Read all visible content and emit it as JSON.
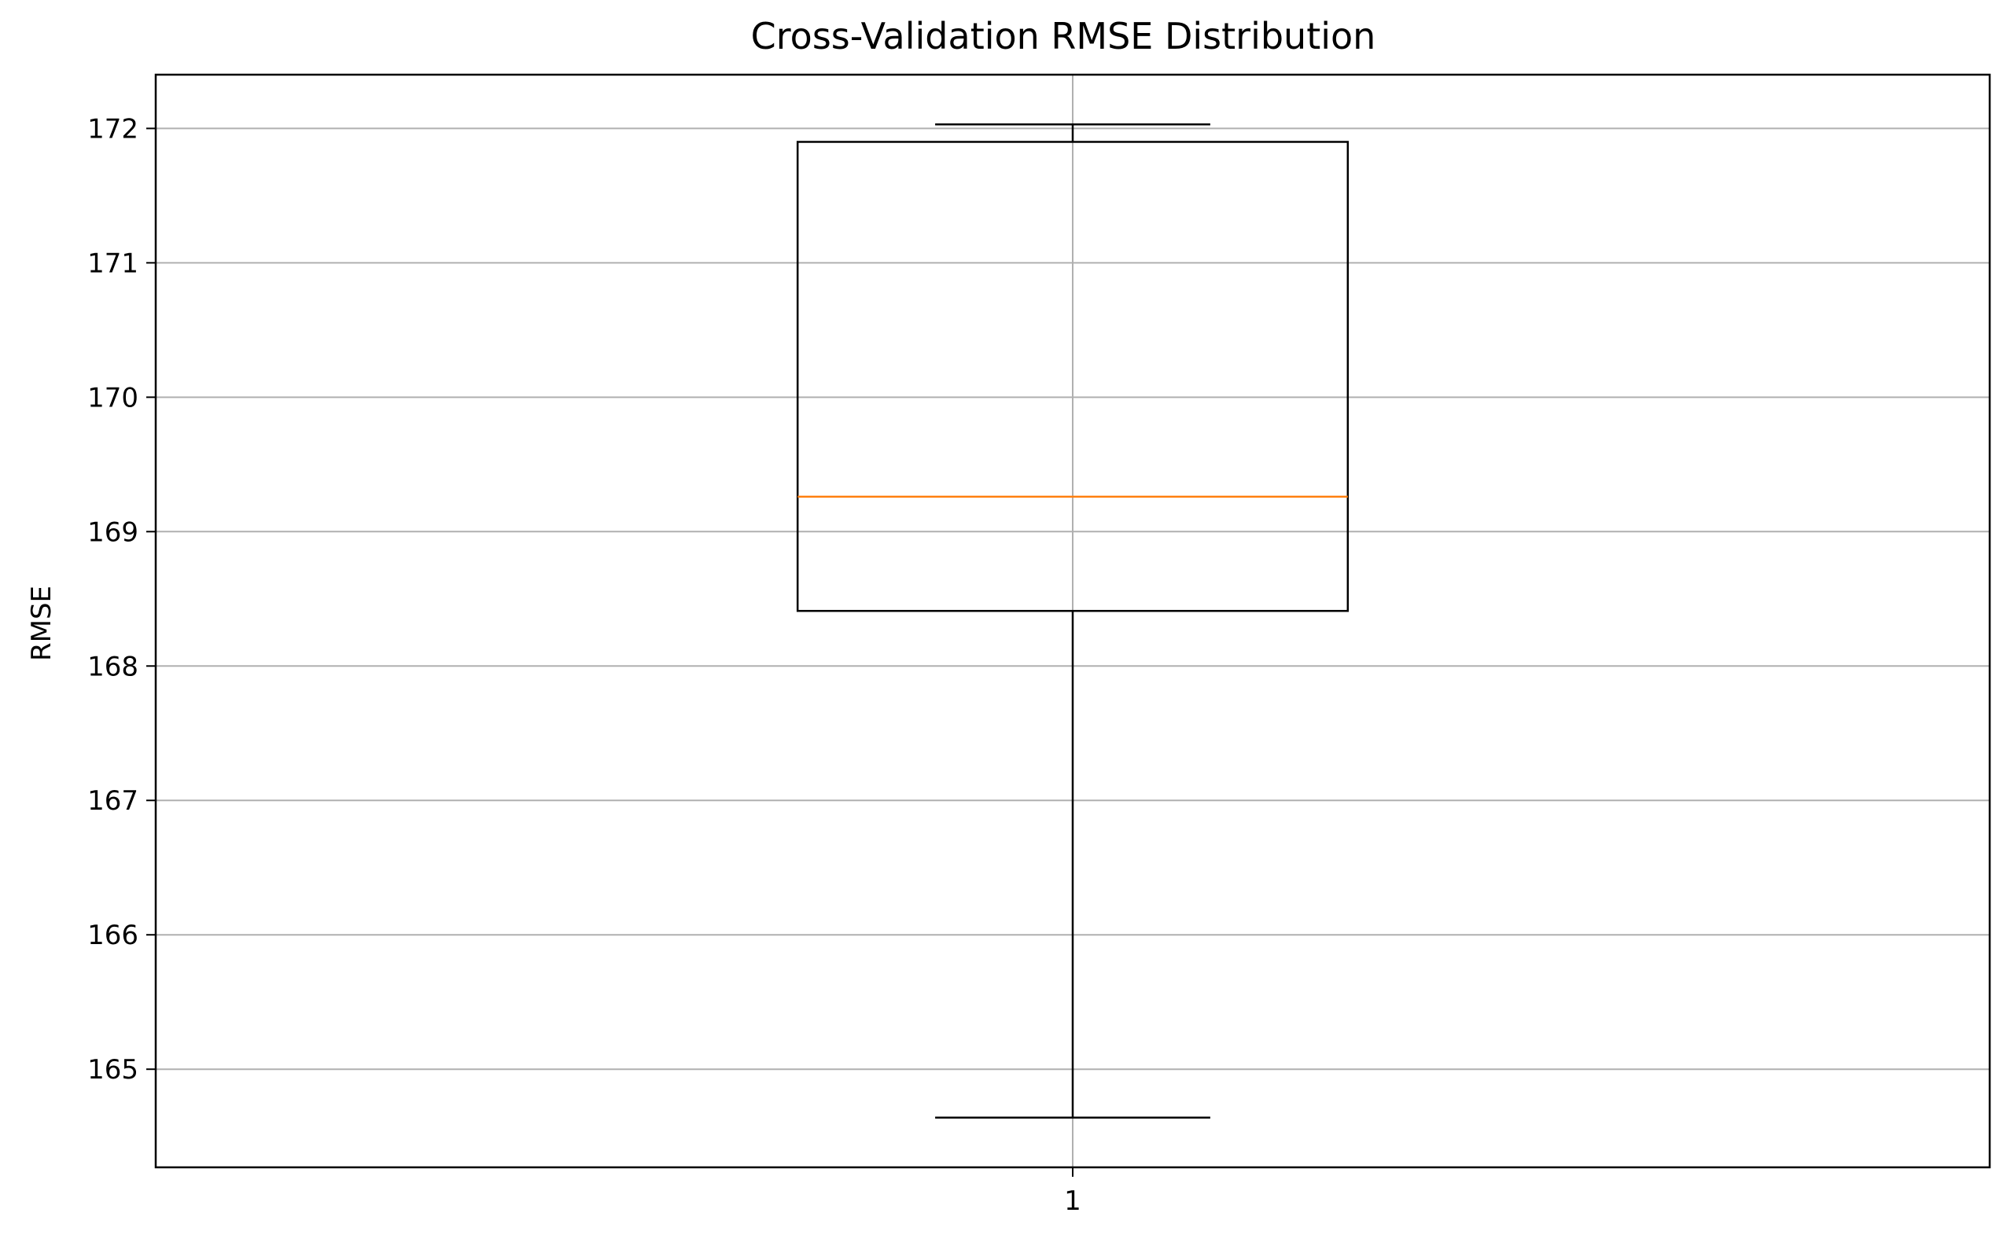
{
  "chart_data": {
    "type": "box",
    "title": "Cross-Validation RMSE Distribution",
    "xlabel": "",
    "ylabel": "RMSE",
    "ylim": [
      164.27,
      172.4
    ],
    "yticks": [
      165,
      166,
      167,
      168,
      169,
      170,
      171,
      172
    ],
    "categories": [
      "1"
    ],
    "boxes": [
      {
        "label": "1",
        "whisker_low": 164.64,
        "q1": 168.41,
        "median": 169.26,
        "q3": 171.9,
        "whisker_high": 172.03
      }
    ],
    "grid": true,
    "colors": {
      "box": "#000000",
      "median": "#ff7f0e",
      "grid": "#b0b0b0",
      "axes": "#000000"
    }
  }
}
